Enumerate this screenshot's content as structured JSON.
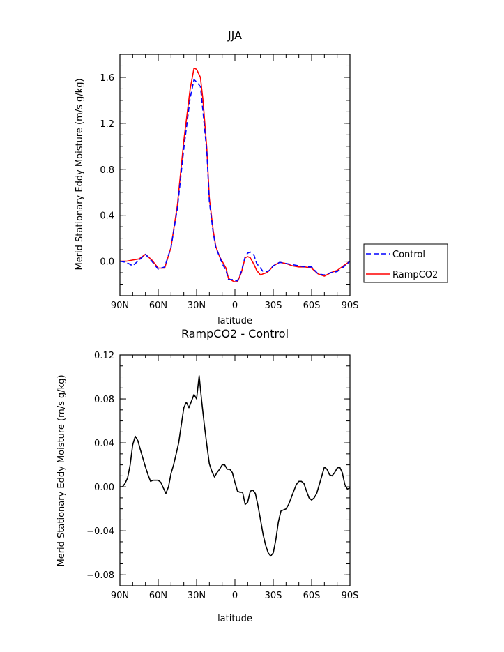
{
  "chart_data": [
    {
      "type": "line",
      "title": "JJA",
      "xlabel": "latitude",
      "ylabel": "Merid Stationary Eddy Moisture (m/s g/kg)",
      "x_unit": "degrees latitude (90N = +90, 90S = -90)",
      "xlim": [
        90,
        -90
      ],
      "ylim": [
        -0.3,
        1.8
      ],
      "xticks": [
        90,
        60,
        30,
        0,
        -30,
        -60,
        -90
      ],
      "xtick_labels": [
        "90N",
        "60N",
        "30N",
        "0",
        "30S",
        "60S",
        "90S"
      ],
      "yticks": [
        0.0,
        0.4,
        0.8,
        1.2,
        1.6
      ],
      "ytick_labels": [
        "0.0",
        "0.4",
        "0.8",
        "1.2",
        "1.6"
      ],
      "legend": {
        "placement": "outside-right"
      },
      "series": [
        {
          "name": "Control",
          "color": "#0000ff",
          "dash": "dashed",
          "x": [
            90,
            85,
            80,
            75,
            70,
            65,
            60,
            55,
            50,
            45,
            40,
            35,
            32,
            30,
            27,
            25,
            22,
            20,
            17,
            15,
            12,
            10,
            7,
            5,
            2,
            0,
            -2,
            -5,
            -8,
            -10,
            -12,
            -15,
            -17,
            -20,
            -22,
            -25,
            -27,
            -30,
            -35,
            -40,
            -45,
            -50,
            -55,
            -60,
            -65,
            -70,
            -75,
            -80,
            -85,
            -90
          ],
          "y": [
            0.0,
            -0.01,
            -0.04,
            0.01,
            0.06,
            0.0,
            -0.07,
            -0.05,
            0.12,
            0.46,
            0.98,
            1.42,
            1.58,
            1.56,
            1.52,
            1.3,
            0.95,
            0.52,
            0.25,
            0.12,
            0.04,
            -0.02,
            -0.08,
            -0.16,
            -0.16,
            -0.17,
            -0.17,
            -0.09,
            0.04,
            0.07,
            0.08,
            0.05,
            -0.02,
            -0.06,
            -0.09,
            -0.09,
            -0.08,
            -0.04,
            -0.01,
            -0.02,
            -0.03,
            -0.04,
            -0.05,
            -0.05,
            -0.11,
            -0.12,
            -0.1,
            -0.09,
            -0.05,
            0.0
          ]
        },
        {
          "name": "RampCO2",
          "color": "#ff0000",
          "dash": "solid",
          "x": [
            90,
            85,
            80,
            75,
            70,
            65,
            60,
            55,
            50,
            45,
            40,
            35,
            32,
            30,
            27,
            25,
            22,
            20,
            17,
            15,
            12,
            10,
            7,
            5,
            2,
            0,
            -2,
            -5,
            -8,
            -10,
            -12,
            -15,
            -17,
            -20,
            -22,
            -25,
            -27,
            -30,
            -35,
            -40,
            -45,
            -50,
            -55,
            -60,
            -65,
            -70,
            -75,
            -80,
            -85,
            -90
          ],
          "y": [
            0.0,
            0.0,
            0.01,
            0.02,
            0.06,
            0.01,
            -0.06,
            -0.06,
            0.12,
            0.49,
            1.05,
            1.5,
            1.68,
            1.67,
            1.6,
            1.4,
            0.98,
            0.55,
            0.27,
            0.13,
            0.04,
            0.0,
            -0.06,
            -0.15,
            -0.17,
            -0.18,
            -0.18,
            -0.1,
            0.03,
            0.04,
            0.03,
            -0.03,
            -0.08,
            -0.12,
            -0.11,
            -0.1,
            -0.08,
            -0.04,
            -0.01,
            -0.02,
            -0.04,
            -0.05,
            -0.05,
            -0.06,
            -0.11,
            -0.13,
            -0.1,
            -0.08,
            -0.04,
            0.0
          ]
        }
      ]
    },
    {
      "type": "line",
      "title": "RampCO2 - Control",
      "xlabel": "latitude",
      "ylabel": "Merid Stationary Eddy Moisture (m/s g/kg)",
      "x_unit": "degrees latitude (90N = +90, 90S = -90)",
      "xlim": [
        90,
        -90
      ],
      "ylim": [
        -0.09,
        0.12
      ],
      "xticks": [
        90,
        60,
        30,
        0,
        -30,
        -60,
        -90
      ],
      "xtick_labels": [
        "90N",
        "60N",
        "30N",
        "0",
        "30S",
        "60S",
        "90S"
      ],
      "yticks": [
        -0.08,
        -0.04,
        0.0,
        0.04,
        0.08,
        0.12
      ],
      "ytick_labels": [
        "−0.08",
        "−0.04",
        "0.00",
        "0.04",
        "0.08",
        "0.12"
      ],
      "series": [
        {
          "color": "#000000",
          "dash": "solid",
          "x": [
            90,
            88,
            86,
            84,
            82,
            80,
            78,
            76,
            74,
            72,
            70,
            68,
            66,
            64,
            62,
            60,
            58,
            56,
            54,
            52,
            50,
            48,
            46,
            44,
            42,
            40,
            38,
            36,
            34,
            32,
            30,
            28,
            26,
            24,
            22,
            20,
            18,
            16,
            14,
            12,
            10,
            8,
            6,
            4,
            2,
            0,
            -2,
            -4,
            -6,
            -8,
            -10,
            -12,
            -14,
            -16,
            -18,
            -20,
            -22,
            -24,
            -26,
            -28,
            -30,
            -32,
            -34,
            -36,
            -38,
            -40,
            -42,
            -44,
            -46,
            -48,
            -50,
            -52,
            -54,
            -56,
            -58,
            -60,
            -62,
            -64,
            -66,
            -68,
            -70,
            -72,
            -74,
            -76,
            -78,
            -80,
            -82,
            -84,
            -86,
            -88,
            -90
          ],
          "y": [
            0.0,
            0.0,
            0.003,
            0.008,
            0.02,
            0.038,
            0.046,
            0.042,
            0.034,
            0.026,
            0.018,
            0.011,
            0.005,
            0.006,
            0.006,
            0.006,
            0.004,
            -0.001,
            -0.006,
            0.0,
            0.012,
            0.02,
            0.03,
            0.04,
            0.056,
            0.072,
            0.077,
            0.072,
            0.078,
            0.084,
            0.08,
            0.101,
            0.078,
            0.057,
            0.038,
            0.021,
            0.014,
            0.009,
            0.013,
            0.016,
            0.02,
            0.02,
            0.016,
            0.016,
            0.013,
            0.004,
            -0.004,
            -0.005,
            -0.005,
            -0.016,
            -0.014,
            -0.004,
            -0.003,
            -0.006,
            -0.017,
            -0.03,
            -0.043,
            -0.053,
            -0.06,
            -0.063,
            -0.06,
            -0.048,
            -0.032,
            -0.022,
            -0.021,
            -0.02,
            -0.016,
            -0.01,
            -0.004,
            0.002,
            0.005,
            0.005,
            0.003,
            -0.004,
            -0.01,
            -0.012,
            -0.01,
            -0.006,
            0.002,
            0.01,
            0.018,
            0.016,
            0.011,
            0.01,
            0.013,
            0.017,
            0.018,
            0.013,
            0.002,
            -0.002,
            -0.001
          ]
        }
      ]
    }
  ]
}
